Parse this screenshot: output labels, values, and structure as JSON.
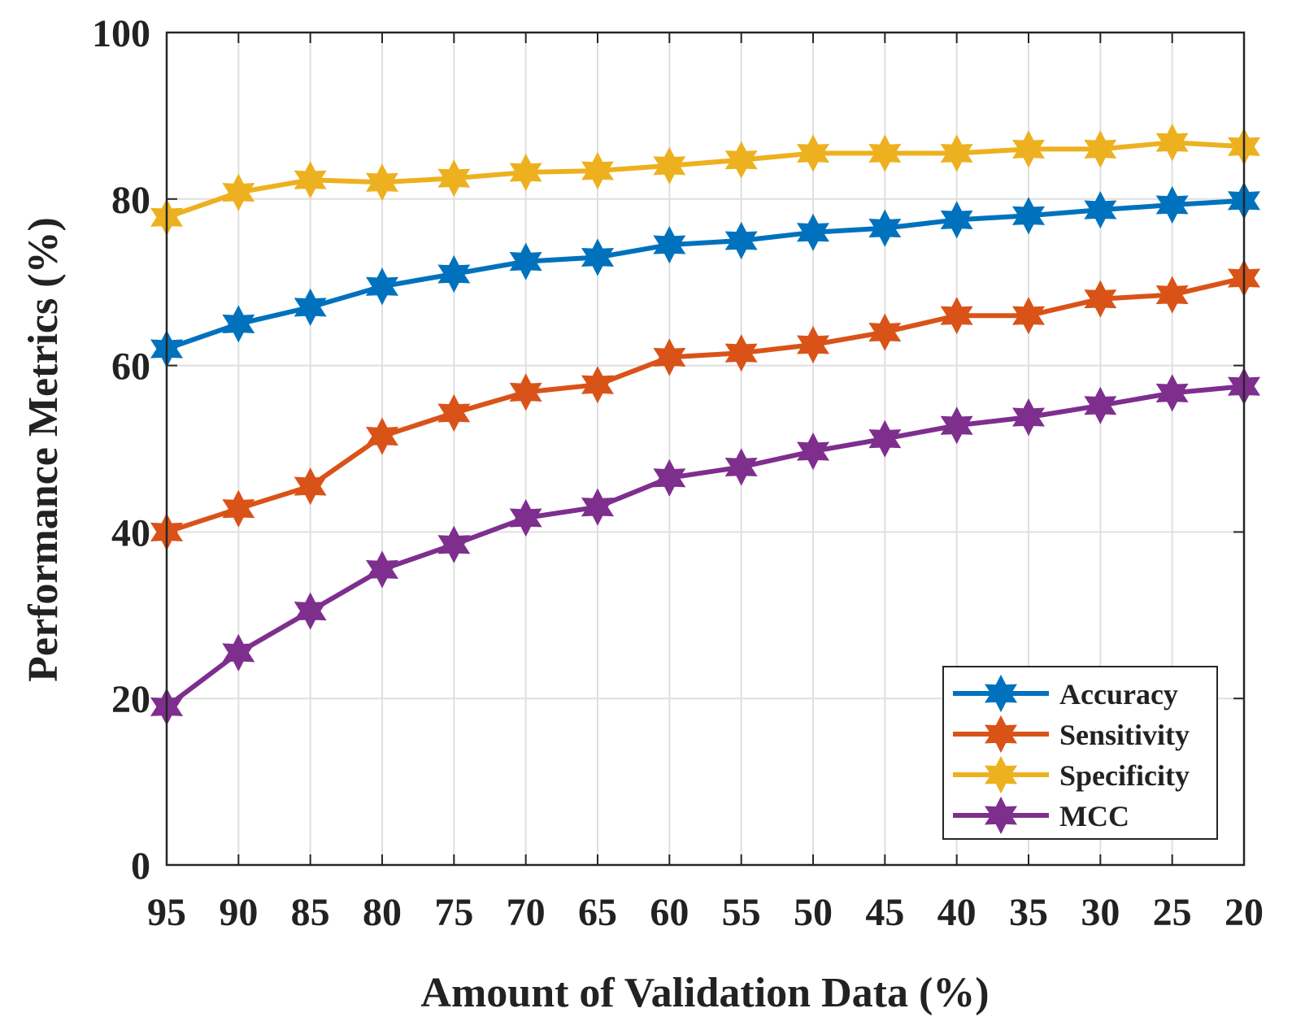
{
  "chart_data": {
    "type": "line",
    "title": "",
    "xlabel": "Amount of Validation Data (%)",
    "ylabel": "Performance Metrics (%)",
    "categories": [
      "95",
      "90",
      "85",
      "80",
      "75",
      "70",
      "65",
      "60",
      "55",
      "50",
      "45",
      "40",
      "35",
      "30",
      "25",
      "20"
    ],
    "ylim": [
      0,
      100
    ],
    "yticks": [
      "0",
      "20",
      "40",
      "60",
      "80",
      "100"
    ],
    "grid": true,
    "legend_position": "bottom-right",
    "marker": "hexagram",
    "series": [
      {
        "name": "Accuracy",
        "color": "#0072BD",
        "values": [
          62,
          65,
          67,
          69.5,
          71,
          72.5,
          73,
          74.5,
          75,
          76,
          76.5,
          77.5,
          78,
          78.7,
          79.3,
          79.8
        ]
      },
      {
        "name": "Sensitivity",
        "color": "#D95319",
        "values": [
          40,
          42.8,
          45.5,
          51.5,
          54.3,
          56.8,
          57.7,
          61,
          61.5,
          62.5,
          64,
          66,
          66,
          68,
          68.5,
          70.5
        ]
      },
      {
        "name": "Specificity",
        "color": "#EDB120",
        "values": [
          77.8,
          80.8,
          82.3,
          82,
          82.5,
          83.2,
          83.4,
          84,
          84.7,
          85.5,
          85.5,
          85.5,
          86,
          86,
          86.8,
          86.3
        ]
      },
      {
        "name": "MCC",
        "color": "#7E2F8E",
        "values": [
          19,
          25.5,
          30.5,
          35.5,
          38.5,
          41.7,
          43,
          46.5,
          47.8,
          49.7,
          51.2,
          52.8,
          53.8,
          55.2,
          56.7,
          57.5
        ]
      }
    ]
  }
}
